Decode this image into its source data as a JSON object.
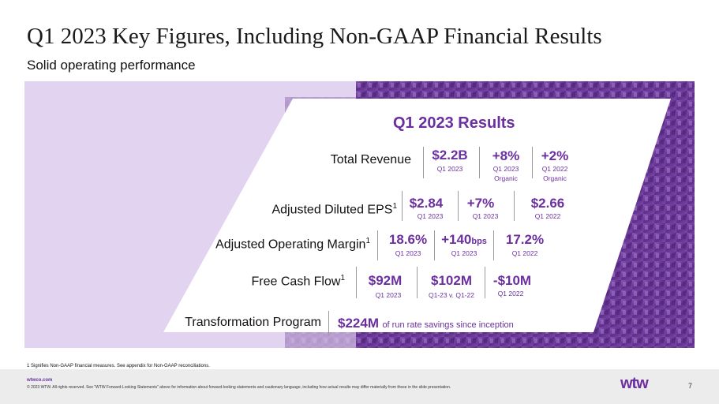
{
  "title": "Q1 2023 Key Figures, Including Non-GAAP Financial Results",
  "subtitle": "Solid operating performance",
  "panel_title": "Q1 2023 Results",
  "rows": [
    {
      "label": "Total Revenue",
      "sup": "",
      "cells": [
        {
          "value": "$2.2B",
          "sub": "Q1 2023"
        },
        {
          "value": "+8%",
          "sub": "Q1 2023",
          "sub2": "Organic"
        },
        {
          "value": "+2%",
          "sub": "Q1 2022",
          "sub2": "Organic"
        }
      ]
    },
    {
      "label": "Adjusted Diluted EPS",
      "sup": "1",
      "cells": [
        {
          "value": "$2.84",
          "sub": "Q1 2023"
        },
        {
          "value": "+7%",
          "sub": "Q1 2023"
        },
        {
          "value": "$2.66",
          "sub": "Q1 2022"
        }
      ]
    },
    {
      "label": "Adjusted Operating Margin",
      "sup": "1",
      "cells": [
        {
          "value": "18.6%",
          "sub": "Q1 2023"
        },
        {
          "value": "+140",
          "unit": "bps",
          "sub": "Q1 2023"
        },
        {
          "value": "17.2%",
          "sub": "Q1 2022"
        }
      ]
    },
    {
      "label": "Free Cash Flow",
      "sup": "1",
      "cells": [
        {
          "value": "$92M",
          "sub": "Q1 2023"
        },
        {
          "value": "$102M",
          "sub": "Q1-23 v. Q1-22"
        },
        {
          "value": "-$10M",
          "sub": "Q1 2022"
        }
      ]
    }
  ],
  "transformation": {
    "label": "Transformation Program",
    "value": "$224M",
    "text": "of run rate savings since inception"
  },
  "footnote": "1 Signifies Non-GAAP financial measures. See appendix for Non-GAAP reconciliations.",
  "footer": {
    "site": "wtwco.com",
    "copyright": "© 2023 WTW. All rights reserved. See “WTW Forward-Looking Statements” above for information about forward-looking statements and cautionary language, including how actual results may differ materially from those in the slide presentation.",
    "logo": "wtw",
    "page": "7"
  },
  "colors": {
    "accent": "#6b2fa0",
    "band_light": "#e2d3f0",
    "band_dark": "#6a3a93"
  }
}
